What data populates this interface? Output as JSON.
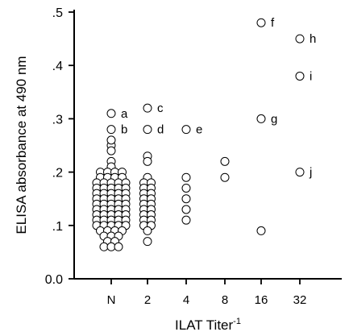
{
  "chart_data": {
    "type": "scatter",
    "xlabel": "ILAT Titer",
    "xlabel_superscript": "-1",
    "ylabel": "ELISA absorbance at 490 nm",
    "ylim": [
      0,
      0.5
    ],
    "y_ticks": [
      {
        "value": 0.0,
        "label": "0.0"
      },
      {
        "value": 0.1,
        "label": ".1"
      },
      {
        "value": 0.2,
        "label": ".2"
      },
      {
        "value": 0.3,
        "label": ".3"
      },
      {
        "value": 0.4,
        "label": ".4"
      },
      {
        "value": 0.5,
        "label": ".5"
      }
    ],
    "categories": [
      "N",
      "2",
      "4",
      "8",
      "16",
      "32"
    ],
    "grid": false,
    "legend": "none",
    "groups": [
      {
        "category": "N",
        "values": [
          0.31,
          0.28,
          0.25,
          0.26,
          0.24,
          0.22,
          0.21,
          0.2,
          0.2,
          0.2,
          0.2,
          0.19,
          0.19,
          0.19,
          0.19,
          0.18,
          0.18,
          0.18,
          0.18,
          0.18,
          0.17,
          0.17,
          0.17,
          0.17,
          0.17,
          0.16,
          0.16,
          0.16,
          0.16,
          0.16,
          0.15,
          0.15,
          0.15,
          0.15,
          0.15,
          0.14,
          0.14,
          0.14,
          0.14,
          0.14,
          0.13,
          0.13,
          0.13,
          0.13,
          0.13,
          0.12,
          0.12,
          0.12,
          0.12,
          0.12,
          0.11,
          0.11,
          0.11,
          0.11,
          0.11,
          0.1,
          0.1,
          0.1,
          0.1,
          0.1,
          0.09,
          0.09,
          0.09,
          0.09,
          0.08,
          0.08,
          0.08,
          0.07,
          0.07,
          0.06,
          0.06,
          0.06
        ]
      },
      {
        "category": "2",
        "values": [
          0.32,
          0.28,
          0.23,
          0.22,
          0.19,
          0.18,
          0.18,
          0.17,
          0.17,
          0.16,
          0.16,
          0.15,
          0.15,
          0.14,
          0.14,
          0.13,
          0.13,
          0.12,
          0.12,
          0.11,
          0.11,
          0.1,
          0.1,
          0.09,
          0.07
        ]
      },
      {
        "category": "4",
        "values": [
          0.28,
          0.19,
          0.17,
          0.15,
          0.13,
          0.11
        ]
      },
      {
        "category": "8",
        "values": [
          0.22,
          0.19
        ]
      },
      {
        "category": "16",
        "values": [
          0.48,
          0.3,
          0.09
        ]
      },
      {
        "category": "32",
        "values": [
          0.45,
          0.38,
          0.2
        ]
      }
    ],
    "annotations": [
      {
        "label": "a",
        "category": "N",
        "value": 0.31
      },
      {
        "label": "b",
        "category": "N",
        "value": 0.28
      },
      {
        "label": "c",
        "category": "2",
        "value": 0.32
      },
      {
        "label": "d",
        "category": "2",
        "value": 0.28
      },
      {
        "label": "e",
        "category": "4",
        "value": 0.28
      },
      {
        "label": "f",
        "category": "16",
        "value": 0.48
      },
      {
        "label": "g",
        "category": "16",
        "value": 0.3
      },
      {
        "label": "h",
        "category": "32",
        "value": 0.45
      },
      {
        "label": "i",
        "category": "32",
        "value": 0.38
      },
      {
        "label": "j",
        "category": "32",
        "value": 0.2
      }
    ]
  }
}
